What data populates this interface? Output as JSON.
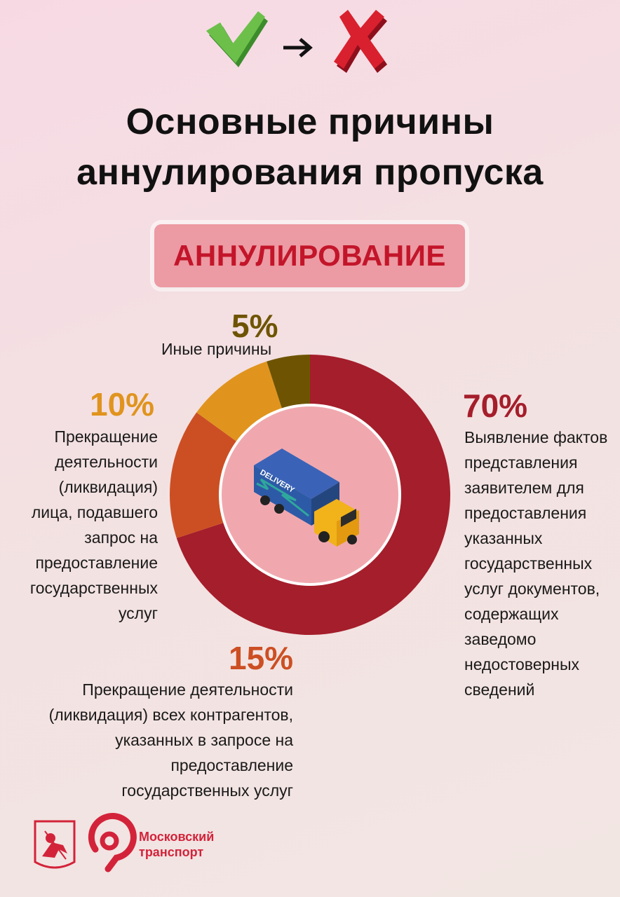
{
  "title": {
    "line1": "Основные причины",
    "line2": "аннулирования пропуска"
  },
  "badge_label": "АННУЛИРОВАНИЕ",
  "colors": {
    "slice_70": "#a51e2b",
    "slice_15": "#cc4f23",
    "slice_10": "#e0941e",
    "slice_5": "#6e5402",
    "center": "#f0a8ae",
    "badge_text": "#c3152a"
  },
  "chart_data": {
    "type": "pie",
    "style": "donut",
    "categories": [
      "Выявление фактов представления заявителем для предоставления указанных государственных услуг документов, содержащих заведомо недостоверных сведений",
      "Прекращение деятельности (ликвидация) всех контрагентов, указанных в запросе на предоставление государственных услуг",
      "Прекращение деятельности (ликвидация) лица, подавшего запрос на предоставление государственных услуг",
      "Иные причины"
    ],
    "values": [
      70,
      15,
      10,
      5
    ],
    "labels": [
      "70%",
      "15%",
      "10%",
      "5%"
    ],
    "legend": "none"
  },
  "callouts": {
    "c70": {
      "value": "70%",
      "lines": [
        "Выявление фактов",
        "представления",
        "заявителем для",
        "предоставления",
        "указанных",
        "государственных",
        "услуг документов,",
        "содержащих",
        "заведомо",
        "недостоверных",
        "сведений"
      ]
    },
    "c15": {
      "value": "15%",
      "lines": [
        "Прекращение деятельности",
        "(ликвидация) всех контрагентов,",
        "указанных в запросе на",
        "предоставление",
        "государственных услуг"
      ]
    },
    "c10": {
      "value": "10%",
      "lines": [
        "Прекращение",
        "деятельности",
        "(ликвидация)",
        "лица, подавшего",
        "запрос на",
        "предоставление",
        "государственных",
        "услуг"
      ]
    },
    "c5": {
      "value": "5%",
      "lines": [
        "Иные причины"
      ]
    }
  },
  "center_icon": {
    "name": "delivery-truck-icon",
    "truck_text": "DELIVERY"
  },
  "footer": {
    "brand_line1": "Московский",
    "brand_line2": "транспорт",
    "coat_of_arms": "moscow-coat-of-arms-icon",
    "brand_logo": "moscow-transport-logo-icon"
  }
}
